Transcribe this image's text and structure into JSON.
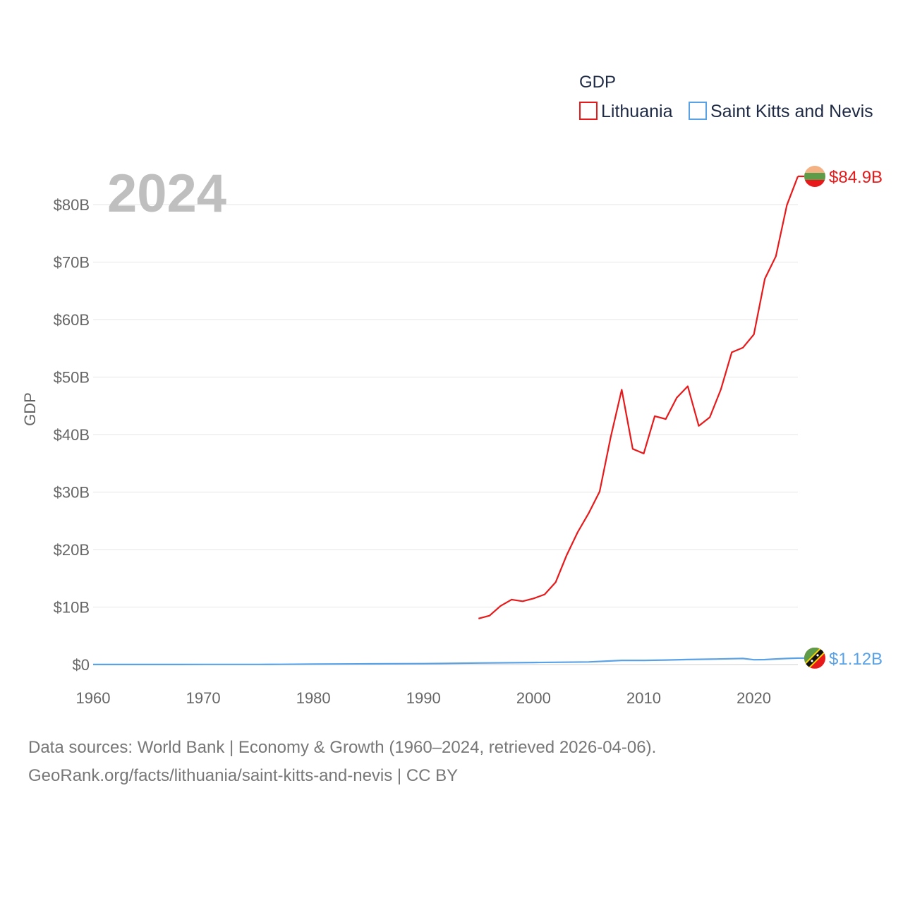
{
  "chart_data": {
    "type": "line",
    "year_label": "2024",
    "ylabel": "GDP",
    "xlabel": "",
    "xlim": [
      1960,
      2024
    ],
    "ylim": [
      0,
      84.9
    ],
    "x_ticks": [
      1960,
      1970,
      1980,
      1990,
      2000,
      2010,
      2020
    ],
    "y_ticks": [
      0,
      10,
      20,
      30,
      40,
      50,
      60,
      70,
      80
    ],
    "y_tick_labels": [
      "$0",
      "$10B",
      "$20B",
      "$30B",
      "$40B",
      "$50B",
      "$60B",
      "$70B",
      "$80B"
    ],
    "legend": {
      "title": "GDP",
      "placement": "top-right"
    },
    "series": [
      {
        "name": "Lithuania",
        "color": "#e8191a",
        "end_label": "$84.9B",
        "x": [
          1995,
          1996,
          1997,
          1998,
          1999,
          2000,
          2001,
          2002,
          2003,
          2004,
          2005,
          2006,
          2007,
          2008,
          2009,
          2010,
          2011,
          2012,
          2013,
          2014,
          2015,
          2016,
          2017,
          2018,
          2019,
          2020,
          2021,
          2022,
          2023,
          2024
        ],
        "values": [
          8.0,
          8.5,
          10.2,
          11.3,
          11.0,
          11.5,
          12.2,
          14.3,
          19.0,
          23.0,
          26.3,
          30.1,
          39.5,
          47.8,
          37.5,
          36.7,
          43.2,
          42.7,
          46.4,
          48.4,
          41.5,
          43.0,
          47.8,
          54.3,
          55.1,
          57.4,
          67.1,
          71.0,
          79.9,
          84.9
        ]
      },
      {
        "name": "Saint Kitts and Nevis",
        "color": "#5aa2e6",
        "end_label": "$1.12B",
        "x": [
          1960,
          1965,
          1970,
          1975,
          1977,
          1980,
          1985,
          1990,
          1995,
          2000,
          2005,
          2008,
          2010,
          2012,
          2014,
          2016,
          2019,
          2020,
          2021,
          2022,
          2023,
          2024
        ],
        "values": [
          0.012,
          0.015,
          0.02,
          0.03,
          0.04,
          0.07,
          0.12,
          0.16,
          0.27,
          0.35,
          0.45,
          0.72,
          0.72,
          0.78,
          0.87,
          0.93,
          1.06,
          0.83,
          0.86,
          0.97,
          1.05,
          1.12
        ]
      }
    ]
  },
  "source": {
    "line1": "Data sources: World Bank | Economy & Growth (1960–2024, retrieved 2026-04-06).",
    "line2": "GeoRank.org/facts/lithuania/saint-kitts-and-nevis | CC BY"
  }
}
